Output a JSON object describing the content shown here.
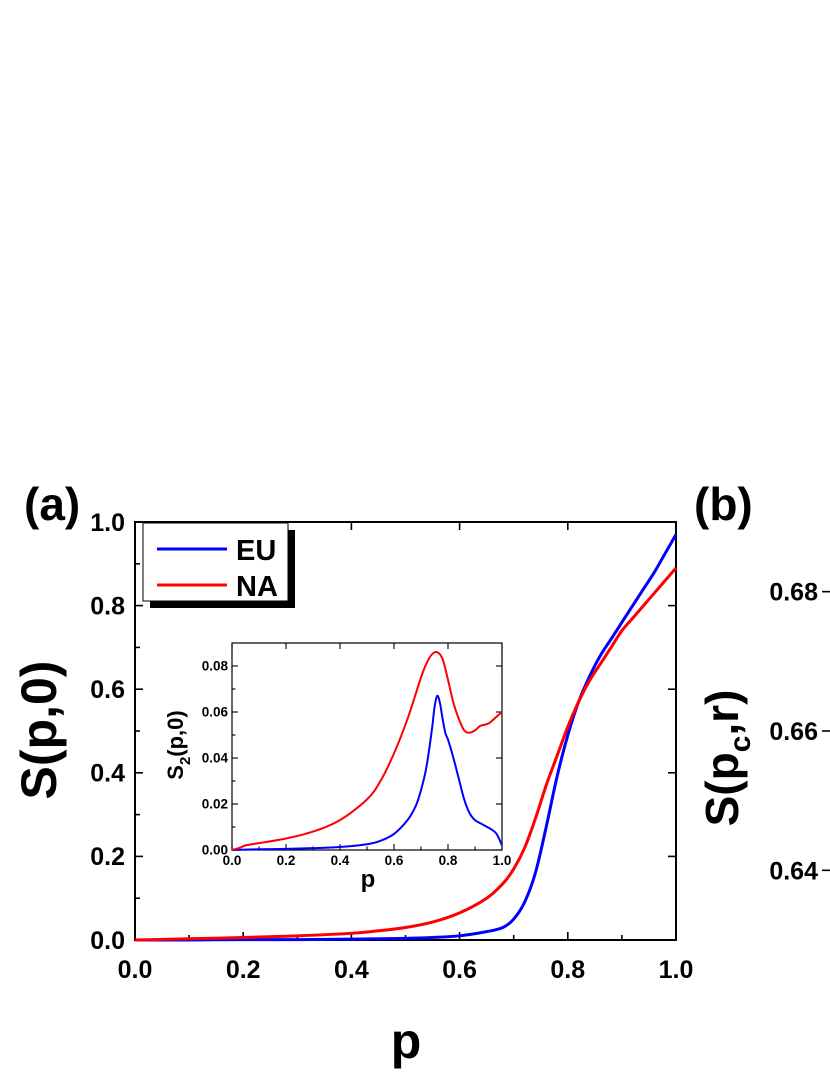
{
  "chart_data": [
    {
      "type": "line",
      "panel_label": "(a)",
      "xlabel": "p",
      "ylabel_parts": [
        "S(p,0)"
      ],
      "xlim": [
        0.0,
        1.0
      ],
      "ylim": [
        0.0,
        1.0
      ],
      "xticks": [
        "0.0",
        "0.2",
        "0.4",
        "0.6",
        "0.8",
        "1.0"
      ],
      "yticks": [
        "0.0",
        "0.2",
        "0.4",
        "0.6",
        "0.8",
        "1.0"
      ],
      "legend": {
        "position": "top-left",
        "entries": [
          "EU",
          "NA"
        ]
      },
      "colors": {
        "EU": "#0000ff",
        "NA": "#ff0000"
      },
      "series": [
        {
          "name": "EU",
          "x": [
            0.0,
            0.1,
            0.2,
            0.3,
            0.4,
            0.5,
            0.55,
            0.6,
            0.65,
            0.68,
            0.7,
            0.72,
            0.74,
            0.76,
            0.78,
            0.8,
            0.82,
            0.84,
            0.86,
            0.88,
            0.9,
            0.92,
            0.94,
            0.96,
            0.98,
            1.0
          ],
          "y": [
            0.0,
            0.0,
            0.001,
            0.001,
            0.002,
            0.004,
            0.006,
            0.01,
            0.02,
            0.03,
            0.05,
            0.09,
            0.16,
            0.27,
            0.39,
            0.49,
            0.57,
            0.63,
            0.68,
            0.72,
            0.76,
            0.8,
            0.84,
            0.88,
            0.925,
            0.97
          ]
        },
        {
          "name": "NA",
          "x": [
            0.0,
            0.1,
            0.2,
            0.3,
            0.4,
            0.45,
            0.5,
            0.55,
            0.6,
            0.65,
            0.68,
            0.7,
            0.72,
            0.74,
            0.76,
            0.78,
            0.8,
            0.82,
            0.84,
            0.86,
            0.88,
            0.9,
            0.92,
            0.94,
            0.96,
            0.98,
            1.0
          ],
          "y": [
            0.0,
            0.003,
            0.006,
            0.01,
            0.016,
            0.022,
            0.03,
            0.043,
            0.065,
            0.1,
            0.135,
            0.17,
            0.22,
            0.29,
            0.37,
            0.44,
            0.51,
            0.57,
            0.62,
            0.66,
            0.7,
            0.74,
            0.77,
            0.8,
            0.83,
            0.86,
            0.89
          ]
        }
      ]
    },
    {
      "type": "line",
      "role": "inset",
      "xlabel": "p",
      "ylabel_parts": [
        "S",
        "2",
        "(p,0)"
      ],
      "xlim": [
        0.0,
        1.0
      ],
      "ylim": [
        0.0,
        0.09
      ],
      "xticks": [
        "0.0",
        "0.2",
        "0.4",
        "0.6",
        "0.8",
        "1.0"
      ],
      "yticks": [
        "0.00",
        "0.02",
        "0.04",
        "0.06",
        "0.08"
      ],
      "series": [
        {
          "name": "EU",
          "x": [
            0.0,
            0.1,
            0.2,
            0.3,
            0.4,
            0.5,
            0.55,
            0.6,
            0.65,
            0.68,
            0.7,
            0.72,
            0.74,
            0.75,
            0.76,
            0.77,
            0.78,
            0.79,
            0.8,
            0.82,
            0.84,
            0.86,
            0.88,
            0.9,
            0.93,
            0.96,
            0.98,
            1.0
          ],
          "y": [
            0.0,
            0.0003,
            0.0005,
            0.0008,
            0.0013,
            0.0025,
            0.004,
            0.007,
            0.013,
            0.019,
            0.026,
            0.036,
            0.052,
            0.062,
            0.067,
            0.064,
            0.057,
            0.051,
            0.048,
            0.04,
            0.031,
            0.022,
            0.016,
            0.013,
            0.011,
            0.009,
            0.007,
            0.002
          ]
        },
        {
          "name": "NA",
          "x": [
            0.0,
            0.03,
            0.05,
            0.1,
            0.2,
            0.3,
            0.4,
            0.5,
            0.55,
            0.6,
            0.65,
            0.7,
            0.72,
            0.74,
            0.76,
            0.78,
            0.8,
            0.82,
            0.84,
            0.86,
            0.88,
            0.9,
            0.92,
            0.95,
            0.98,
            1.0
          ],
          "y": [
            0.0,
            0.001,
            0.002,
            0.003,
            0.005,
            0.008,
            0.013,
            0.022,
            0.03,
            0.042,
            0.057,
            0.075,
            0.081,
            0.085,
            0.086,
            0.083,
            0.074,
            0.064,
            0.057,
            0.052,
            0.051,
            0.052,
            0.054,
            0.055,
            0.058,
            0.06
          ]
        }
      ]
    },
    {
      "type": "line",
      "panel_label": "(b)",
      "ylabel_parts": [
        "S(p",
        "c",
        ",r)"
      ],
      "yticks": [
        "0.64",
        "0.66",
        "0.68"
      ],
      "ylim": [
        0.63,
        0.69
      ],
      "series": []
    }
  ]
}
